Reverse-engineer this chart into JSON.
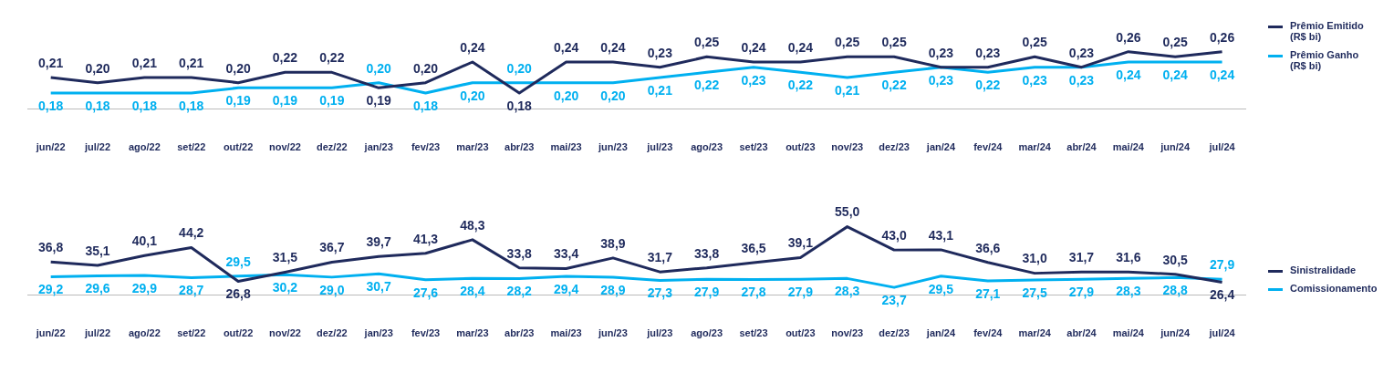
{
  "chart_data": [
    {
      "type": "line",
      "categories": [
        "jun/22",
        "jul/22",
        "ago/22",
        "set/22",
        "out/22",
        "nov/22",
        "dez/22",
        "jan/23",
        "fev/23",
        "mar/23",
        "abr/23",
        "mai/23",
        "jun/23",
        "jul/23",
        "ago/23",
        "set/23",
        "out/23",
        "nov/23",
        "dez/23",
        "jan/24",
        "fev/24",
        "mar/24",
        "abr/24",
        "mai/24",
        "jun/24",
        "jul/24"
      ],
      "series": [
        {
          "name": "Prêmio Emitido (R$ bi)",
          "color": "#1f2a5c",
          "values": [
            0.21,
            0.2,
            0.21,
            0.21,
            0.2,
            0.22,
            0.22,
            0.19,
            0.2,
            0.24,
            0.18,
            0.24,
            0.24,
            0.23,
            0.25,
            0.24,
            0.24,
            0.25,
            0.25,
            0.23,
            0.23,
            0.25,
            0.23,
            0.26,
            0.25,
            0.26
          ],
          "value_labels": [
            "0,21",
            "0,20",
            "0,21",
            "0,21",
            "0,20",
            "0,22",
            "0,22",
            "0,19",
            "0,20",
            "0,24",
            "0,18",
            "0,24",
            "0,24",
            "0,23",
            "0,25",
            "0,24",
            "0,24",
            "0,25",
            "0,25",
            "0,23",
            "0,23",
            "0,25",
            "0,23",
            "0,26",
            "0,25",
            "0,26"
          ]
        },
        {
          "name": "Prêmio Ganho (R$ bi)",
          "color": "#00b0f0",
          "values": [
            0.18,
            0.18,
            0.18,
            0.18,
            0.19,
            0.19,
            0.19,
            0.2,
            0.18,
            0.2,
            0.2,
            0.2,
            0.2,
            0.21,
            0.22,
            0.23,
            0.22,
            0.21,
            0.22,
            0.23,
            0.22,
            0.23,
            0.23,
            0.24,
            0.24,
            0.24
          ],
          "value_labels": [
            "0,18",
            "0,18",
            "0,18",
            "0,18",
            "0,19",
            "0,19",
            "0,19",
            "0,20",
            "0,18",
            "0,20",
            "0,20",
            "0,20",
            "0,20",
            "0,21",
            "0,22",
            "0,23",
            "0,22",
            "0,21",
            "0,22",
            "0,23",
            "0,22",
            "0,23",
            "0,23",
            "0,24",
            "0,24",
            "0,24"
          ]
        }
      ],
      "legend": "right",
      "grid": false,
      "marker": "none",
      "line_style": "solid",
      "tick_labels": "x"
    },
    {
      "type": "line",
      "categories": [
        "jun/22",
        "jul/22",
        "ago/22",
        "set/22",
        "out/22",
        "nov/22",
        "dez/22",
        "jan/23",
        "fev/23",
        "mar/23",
        "abr/23",
        "mai/23",
        "jun/23",
        "jul/23",
        "ago/23",
        "set/23",
        "out/23",
        "nov/23",
        "dez/23",
        "jan/24",
        "fev/24",
        "mar/24",
        "abr/24",
        "mai/24",
        "jun/24",
        "jul/24"
      ],
      "series": [
        {
          "name": "Sinistralidade",
          "color": "#1f2a5c",
          "values": [
            36.8,
            35.1,
            40.1,
            44.2,
            26.8,
            31.5,
            36.7,
            39.7,
            41.3,
            48.3,
            33.8,
            33.4,
            38.9,
            31.7,
            33.8,
            36.5,
            39.1,
            55.0,
            43.0,
            43.1,
            36.6,
            31.0,
            31.7,
            31.6,
            30.5,
            26.4
          ],
          "value_labels": [
            "36,8",
            "35,1",
            "40,1",
            "44,2",
            "26,8",
            "31,5",
            "36,7",
            "39,7",
            "41,3",
            "48,3",
            "33,8",
            "33,4",
            "38,9",
            "31,7",
            "33,8",
            "36,5",
            "39,1",
            "55,0",
            "43,0",
            "43,1",
            "36,6",
            "31,0",
            "31,7",
            "31,6",
            "30,5",
            "26,4"
          ]
        },
        {
          "name": "Comissionamento",
          "color": "#00b0f0",
          "values": [
            29.2,
            29.6,
            29.9,
            28.7,
            29.5,
            30.2,
            29.0,
            30.7,
            27.6,
            28.4,
            28.2,
            29.4,
            28.9,
            27.3,
            27.9,
            27.8,
            27.9,
            28.3,
            23.7,
            29.5,
            27.1,
            27.5,
            27.9,
            28.3,
            28.8,
            27.9
          ],
          "value_labels": [
            "29,2",
            "29,6",
            "29,9",
            "28,7",
            "29,5",
            "30,2",
            "29,0",
            "30,7",
            "27,6",
            "28,4",
            "28,2",
            "29,4",
            "28,9",
            "27,3",
            "27,9",
            "27,8",
            "27,9",
            "28,3",
            "23,7",
            "29,5",
            "27,1",
            "27,5",
            "27,9",
            "28,3",
            "28,8",
            "27,9"
          ]
        }
      ],
      "legend": "right",
      "grid": false,
      "marker": "none",
      "line_style": "solid",
      "tick_labels": "x"
    }
  ]
}
